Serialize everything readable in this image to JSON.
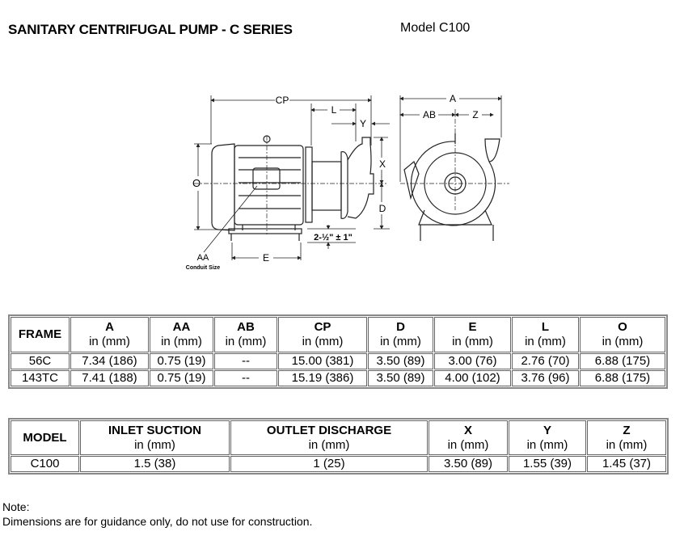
{
  "header": {
    "title": "SANITARY CENTRIFUGAL PUMP - C SERIES",
    "model": "Model C100"
  },
  "diagram": {
    "labels": {
      "CP": "CP",
      "L": "L",
      "Y": "Y",
      "X": "X",
      "D": "D",
      "O": "O",
      "A": "A",
      "AB": "AB",
      "Z": "Z",
      "E": "E",
      "AA": "AA",
      "conduit": "Conduit Size",
      "clearance": "2-½\" ± 1\""
    }
  },
  "frame_table": {
    "headers": [
      {
        "label": "FRAME",
        "unit": ""
      },
      {
        "label": "A",
        "unit": "in (mm)"
      },
      {
        "label": "AA",
        "unit": "in (mm)"
      },
      {
        "label": "AB",
        "unit": "in (mm)"
      },
      {
        "label": "CP",
        "unit": "in (mm)"
      },
      {
        "label": "D",
        "unit": "in (mm)"
      },
      {
        "label": "E",
        "unit": "in (mm)"
      },
      {
        "label": "L",
        "unit": "in (mm)"
      },
      {
        "label": "O",
        "unit": "in (mm)"
      }
    ],
    "rows": [
      [
        "56C",
        "7.34 (186)",
        "0.75 (19)",
        "--",
        "15.00 (381)",
        "3.50 (89)",
        "3.00 (76)",
        "2.76 (70)",
        "6.88 (175)"
      ],
      [
        "143TC",
        "7.41 (188)",
        "0.75 (19)",
        "--",
        "15.19 (386)",
        "3.50 (89)",
        "4.00 (102)",
        "3.76 (96)",
        "6.88 (175)"
      ]
    ]
  },
  "model_table": {
    "headers": [
      {
        "label": "MODEL",
        "unit": ""
      },
      {
        "label": "INLET SUCTION",
        "unit": "in (mm)"
      },
      {
        "label": "OUTLET DISCHARGE",
        "unit": "in (mm)"
      },
      {
        "label": "X",
        "unit": "in (mm)"
      },
      {
        "label": "Y",
        "unit": "in (mm)"
      },
      {
        "label": "Z",
        "unit": "in (mm)"
      }
    ],
    "rows": [
      [
        "C100",
        "1.5 (38)",
        "1 (25)",
        "3.50 (89)",
        "1.55 (39)",
        "1.45 (37)"
      ]
    ]
  },
  "note": {
    "label": "Note:",
    "text": "Dimensions are for guidance only, do not use for construction."
  }
}
